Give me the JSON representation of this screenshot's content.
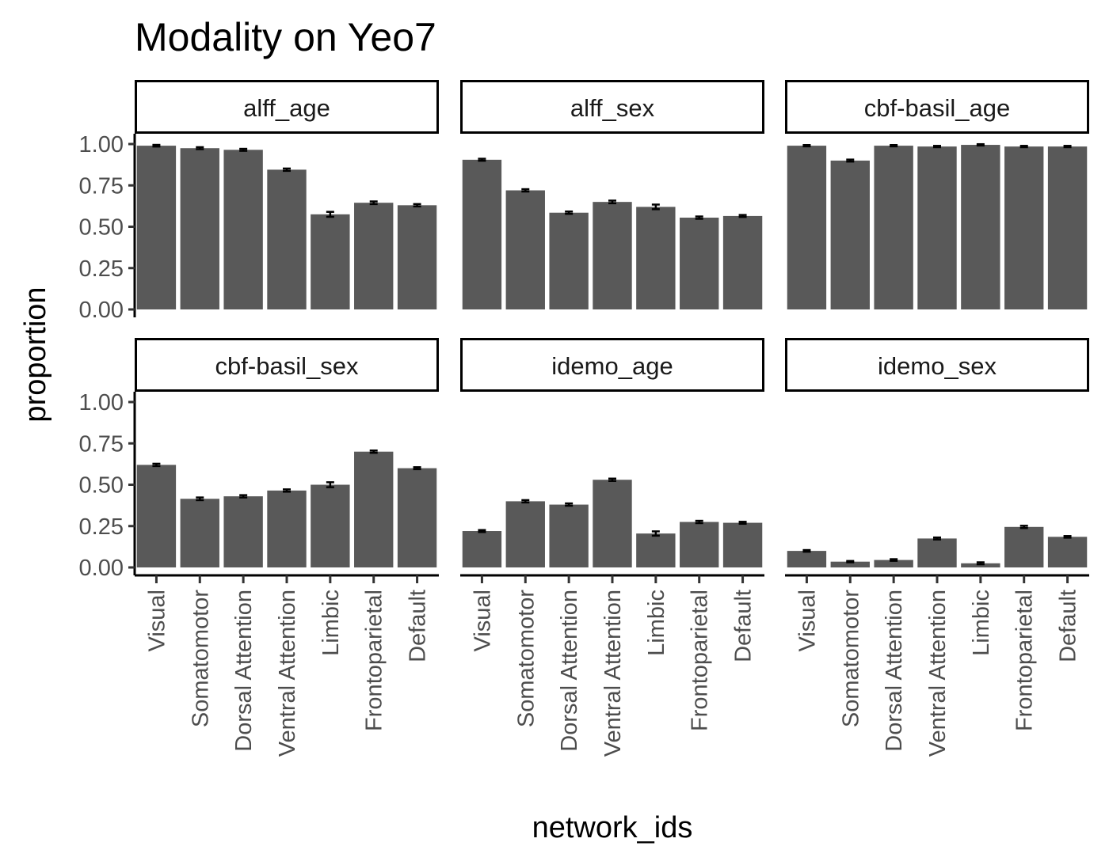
{
  "chart_data": {
    "type": "bar",
    "title": "Modality on Yeo7",
    "xlabel": "network_ids",
    "ylabel": "proportion",
    "ylim": [
      0,
      1
    ],
    "y_ticks": [
      "0.00",
      "0.25",
      "0.50",
      "0.75",
      "1.00"
    ],
    "categories": [
      "Visual",
      "Somatomotor",
      "Dorsal Attention",
      "Ventral Attention",
      "Limbic",
      "Frontoparietal",
      "Default"
    ],
    "bar_color": "#595959",
    "error_bar_color": "#000000",
    "grid": false,
    "panels": [
      {
        "name": "alff_age",
        "values": [
          0.99,
          0.975,
          0.965,
          0.845,
          0.575,
          0.645,
          0.63
        ],
        "errors": [
          0.005,
          0.006,
          0.006,
          0.007,
          0.015,
          0.008,
          0.007
        ]
      },
      {
        "name": "alff_sex",
        "values": [
          0.905,
          0.72,
          0.585,
          0.65,
          0.62,
          0.555,
          0.565
        ],
        "errors": [
          0.006,
          0.007,
          0.007,
          0.008,
          0.014,
          0.007,
          0.006
        ]
      },
      {
        "name": "cbf-basil_age",
        "values": [
          0.99,
          0.9,
          0.99,
          0.985,
          0.995,
          0.985,
          0.985
        ],
        "errors": [
          0.004,
          0.006,
          0.004,
          0.004,
          0.004,
          0.004,
          0.004
        ]
      },
      {
        "name": "cbf-basil_sex",
        "values": [
          0.62,
          0.415,
          0.43,
          0.465,
          0.5,
          0.7,
          0.6
        ],
        "errors": [
          0.007,
          0.008,
          0.007,
          0.007,
          0.015,
          0.007,
          0.006
        ]
      },
      {
        "name": "idemo_age",
        "values": [
          0.22,
          0.4,
          0.38,
          0.53,
          0.205,
          0.275,
          0.27
        ],
        "errors": [
          0.006,
          0.007,
          0.007,
          0.007,
          0.013,
          0.007,
          0.006
        ]
      },
      {
        "name": "idemo_sex",
        "values": [
          0.1,
          0.035,
          0.045,
          0.175,
          0.025,
          0.245,
          0.185
        ],
        "errors": [
          0.005,
          0.004,
          0.005,
          0.006,
          0.006,
          0.007,
          0.005
        ]
      }
    ]
  }
}
